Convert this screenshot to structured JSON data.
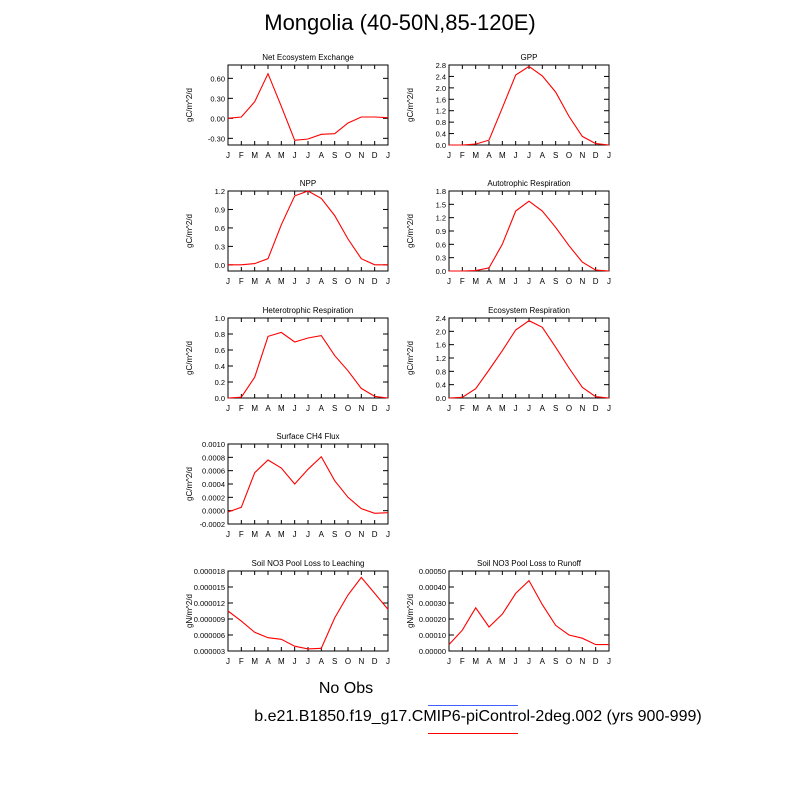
{
  "page": {
    "title": "Mongolia (40-50N,85-120E)"
  },
  "legend": {
    "obs_label": "No Obs",
    "obs_color": "#0000ff",
    "model_label": "b.e21.B1850.f19_g17.CMIP6-piControl-2deg.002 (yrs 900-999)",
    "model_color": "#ff0000"
  },
  "chart_data": [
    {
      "type": "line",
      "title": "Net Ecosystem Exchange",
      "ylabel": "gC/m^2/d",
      "categories": [
        "J",
        "F",
        "M",
        "A",
        "M",
        "J",
        "J",
        "A",
        "S",
        "O",
        "N",
        "D",
        "J"
      ],
      "values": [
        0.0,
        0.02,
        0.25,
        0.67,
        0.18,
        -0.33,
        -0.31,
        -0.24,
        -0.23,
        -0.07,
        0.02,
        0.02,
        0.01
      ],
      "ylim": [
        -0.4,
        0.8
      ],
      "yticks": [
        "-0.30",
        "0.00",
        "0.30",
        "0.60"
      ],
      "ytick_values": [
        -0.3,
        0.0,
        0.3,
        0.6
      ],
      "series_color": "#ff0000"
    },
    {
      "type": "line",
      "title": "GPP",
      "ylabel": "gC/m^2/d",
      "categories": [
        "J",
        "F",
        "M",
        "A",
        "M",
        "J",
        "J",
        "A",
        "S",
        "O",
        "N",
        "D",
        "J"
      ],
      "values": [
        0.0,
        0.0,
        0.03,
        0.17,
        1.3,
        2.45,
        2.75,
        2.42,
        1.85,
        1.0,
        0.3,
        0.05,
        0.0
      ],
      "ylim": [
        0,
        2.8
      ],
      "yticks": [
        "0.0",
        "0.4",
        "0.8",
        "1.2",
        "1.6",
        "2.0",
        "2.4",
        "2.8"
      ],
      "ytick_values": [
        0,
        0.4,
        0.8,
        1.2,
        1.6,
        2.0,
        2.4,
        2.8
      ],
      "series_color": "#ff0000"
    },
    {
      "type": "line",
      "title": "NPP",
      "ylabel": "gC/m^2/d",
      "categories": [
        "J",
        "F",
        "M",
        "A",
        "M",
        "J",
        "J",
        "A",
        "S",
        "O",
        "N",
        "D",
        "J"
      ],
      "values": [
        0.0,
        0.0,
        0.02,
        0.1,
        0.65,
        1.12,
        1.2,
        1.08,
        0.8,
        0.42,
        0.1,
        0.0,
        0.0
      ],
      "ylim": [
        -0.1,
        1.2
      ],
      "yticks": [
        "0.0",
        "0.3",
        "0.6",
        "0.9",
        "1.2"
      ],
      "ytick_values": [
        0.0,
        0.3,
        0.6,
        0.9,
        1.2
      ],
      "series_color": "#ff0000"
    },
    {
      "type": "line",
      "title": "Autotrophic Respiration",
      "ylabel": "gC/m^2/d",
      "categories": [
        "J",
        "F",
        "M",
        "A",
        "M",
        "J",
        "J",
        "A",
        "S",
        "O",
        "N",
        "D",
        "J"
      ],
      "values": [
        0.0,
        0.0,
        0.01,
        0.07,
        0.6,
        1.35,
        1.57,
        1.35,
        0.98,
        0.57,
        0.2,
        0.02,
        0.0
      ],
      "ylim": [
        0,
        1.8
      ],
      "yticks": [
        "0.0",
        "0.3",
        "0.6",
        "0.9",
        "1.2",
        "1.5",
        "1.8"
      ],
      "ytick_values": [
        0,
        0.3,
        0.6,
        0.9,
        1.2,
        1.5,
        1.8
      ],
      "series_color": "#ff0000"
    },
    {
      "type": "line",
      "title": "Heterotrophic Respiration",
      "ylabel": "gC/m^2/d",
      "categories": [
        "J",
        "F",
        "M",
        "A",
        "M",
        "J",
        "J",
        "A",
        "S",
        "O",
        "N",
        "D",
        "J"
      ],
      "values": [
        0.0,
        0.01,
        0.26,
        0.77,
        0.82,
        0.7,
        0.75,
        0.78,
        0.53,
        0.34,
        0.12,
        0.02,
        0.0
      ],
      "ylim": [
        0,
        1.0
      ],
      "yticks": [
        "0.0",
        "0.2",
        "0.4",
        "0.6",
        "0.8",
        "1.0"
      ],
      "ytick_values": [
        0,
        0.2,
        0.4,
        0.6,
        0.8,
        1.0
      ],
      "series_color": "#ff0000"
    },
    {
      "type": "line",
      "title": "Ecosystem Respiration",
      "ylabel": "gC/m^2/d",
      "categories": [
        "J",
        "F",
        "M",
        "A",
        "M",
        "J",
        "J",
        "A",
        "S",
        "O",
        "N",
        "D",
        "J"
      ],
      "values": [
        0.0,
        0.02,
        0.28,
        0.84,
        1.42,
        2.04,
        2.32,
        2.12,
        1.52,
        0.9,
        0.32,
        0.04,
        0.0
      ],
      "ylim": [
        0,
        2.4
      ],
      "yticks": [
        "0.0",
        "0.4",
        "0.8",
        "1.2",
        "1.6",
        "2.0",
        "2.4"
      ],
      "ytick_values": [
        0,
        0.4,
        0.8,
        1.2,
        1.6,
        2.0,
        2.4
      ],
      "series_color": "#ff0000"
    },
    {
      "type": "line",
      "title": "Surface CH4 Flux",
      "ylabel": "gC/m^2/d",
      "categories": [
        "J",
        "F",
        "M",
        "A",
        "M",
        "J",
        "J",
        "A",
        "S",
        "O",
        "N",
        "D",
        "J"
      ],
      "values": [
        -2e-05,
        5e-05,
        0.00057,
        0.00076,
        0.00064,
        0.0004,
        0.00062,
        0.00081,
        0.00045,
        0.0002,
        3e-05,
        -4e-05,
        -3e-05
      ],
      "ylim": [
        -0.0002,
        0.001
      ],
      "yticks": [
        "-0.0002",
        "0.0000",
        "0.0002",
        "0.0004",
        "0.0006",
        "0.0008",
        "0.0010"
      ],
      "ytick_values": [
        -0.0002,
        0,
        0.0002,
        0.0004,
        0.0006,
        0.0008,
        0.001
      ],
      "series_color": "#ff0000"
    },
    {
      "type": "line",
      "title": "Soil NO3 Pool Loss to Leaching",
      "ylabel": "gN/m^2/d",
      "categories": [
        "J",
        "F",
        "M",
        "A",
        "M",
        "J",
        "J",
        "A",
        "S",
        "O",
        "N",
        "D",
        "J"
      ],
      "values": [
        1.05e-05,
        8.6e-06,
        6.5e-06,
        5.5e-06,
        5.2e-06,
        3.9e-06,
        3.4e-06,
        3.5e-06,
        9.2e-06,
        1.35e-05,
        1.68e-05,
        1.38e-05,
        1.08e-05
      ],
      "ylim": [
        3e-06,
        1.8e-05
      ],
      "yticks": [
        "0.000003",
        "0.000006",
        "0.000009",
        "0.000012",
        "0.000015",
        "0.000018"
      ],
      "ytick_values": [
        3e-06,
        6e-06,
        9e-06,
        1.2e-05,
        1.5e-05,
        1.8e-05
      ],
      "series_color": "#ff0000"
    },
    {
      "type": "line",
      "title": "Soil NO3 Pool Loss to Runoff",
      "ylabel": "gN/m^2/d",
      "categories": [
        "J",
        "F",
        "M",
        "A",
        "M",
        "J",
        "J",
        "A",
        "S",
        "O",
        "N",
        "D",
        "J"
      ],
      "values": [
        4e-05,
        0.00013,
        0.00027,
        0.00015,
        0.00023,
        0.00036,
        0.00044,
        0.00029,
        0.00016,
        0.0001,
        8e-05,
        4e-05,
        4e-05
      ],
      "ylim": [
        0,
        0.0005
      ],
      "yticks": [
        "0.00000",
        "0.00010",
        "0.00020",
        "0.00030",
        "0.00040",
        "0.00050"
      ],
      "ytick_values": [
        0,
        0.0001,
        0.0002,
        0.0003,
        0.0004,
        0.0005
      ],
      "series_color": "#ff0000"
    }
  ]
}
